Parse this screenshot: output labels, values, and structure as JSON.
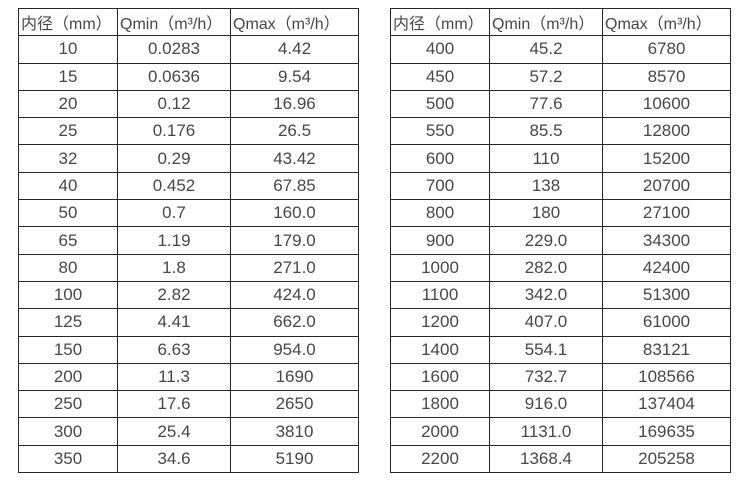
{
  "colors": {
    "background": "#ffffff",
    "text": "#474747",
    "border": "#262626"
  },
  "left_table": {
    "headers": [
      "内径（mm）",
      "Qmin（m³/h）",
      "Qmax（m³/h）"
    ],
    "rows": [
      [
        "10",
        "0.0283",
        "4.42"
      ],
      [
        "15",
        "0.0636",
        "9.54"
      ],
      [
        "20",
        "0.12",
        "16.96"
      ],
      [
        "25",
        "0.176",
        "26.5"
      ],
      [
        "32",
        "0.29",
        "43.42"
      ],
      [
        "40",
        "0.452",
        "67.85"
      ],
      [
        "50",
        "0.7",
        "160.0"
      ],
      [
        "65",
        "1.19",
        "179.0"
      ],
      [
        "80",
        "1.8",
        "271.0"
      ],
      [
        "100",
        "2.82",
        "424.0"
      ],
      [
        "125",
        "4.41",
        "662.0"
      ],
      [
        "150",
        "6.63",
        "954.0"
      ],
      [
        "200",
        "11.3",
        "1690"
      ],
      [
        "250",
        "17.6",
        "2650"
      ],
      [
        "300",
        "25.4",
        "3810"
      ],
      [
        "350",
        "34.6",
        "5190"
      ]
    ]
  },
  "right_table": {
    "headers": [
      "内径（mm）",
      "Qmin（m³/h）",
      "Qmax（m³/h）"
    ],
    "rows": [
      [
        "400",
        "45.2",
        "6780"
      ],
      [
        "450",
        "57.2",
        "8570"
      ],
      [
        "500",
        "77.6",
        "10600"
      ],
      [
        "550",
        "85.5",
        "12800"
      ],
      [
        "600",
        "110",
        "15200"
      ],
      [
        "700",
        "138",
        "20700"
      ],
      [
        "800",
        "180",
        "27100"
      ],
      [
        "900",
        "229.0",
        "34300"
      ],
      [
        "1000",
        "282.0",
        "42400"
      ],
      [
        "1100",
        "342.0",
        "51300"
      ],
      [
        "1200",
        "407.0",
        "61000"
      ],
      [
        "1400",
        "554.1",
        "83121"
      ],
      [
        "1600",
        "732.7",
        "108566"
      ],
      [
        "1800",
        "916.0",
        "137404"
      ],
      [
        "2000",
        "1131.0",
        "169635"
      ],
      [
        "2200",
        "1368.4",
        "205258"
      ]
    ]
  }
}
